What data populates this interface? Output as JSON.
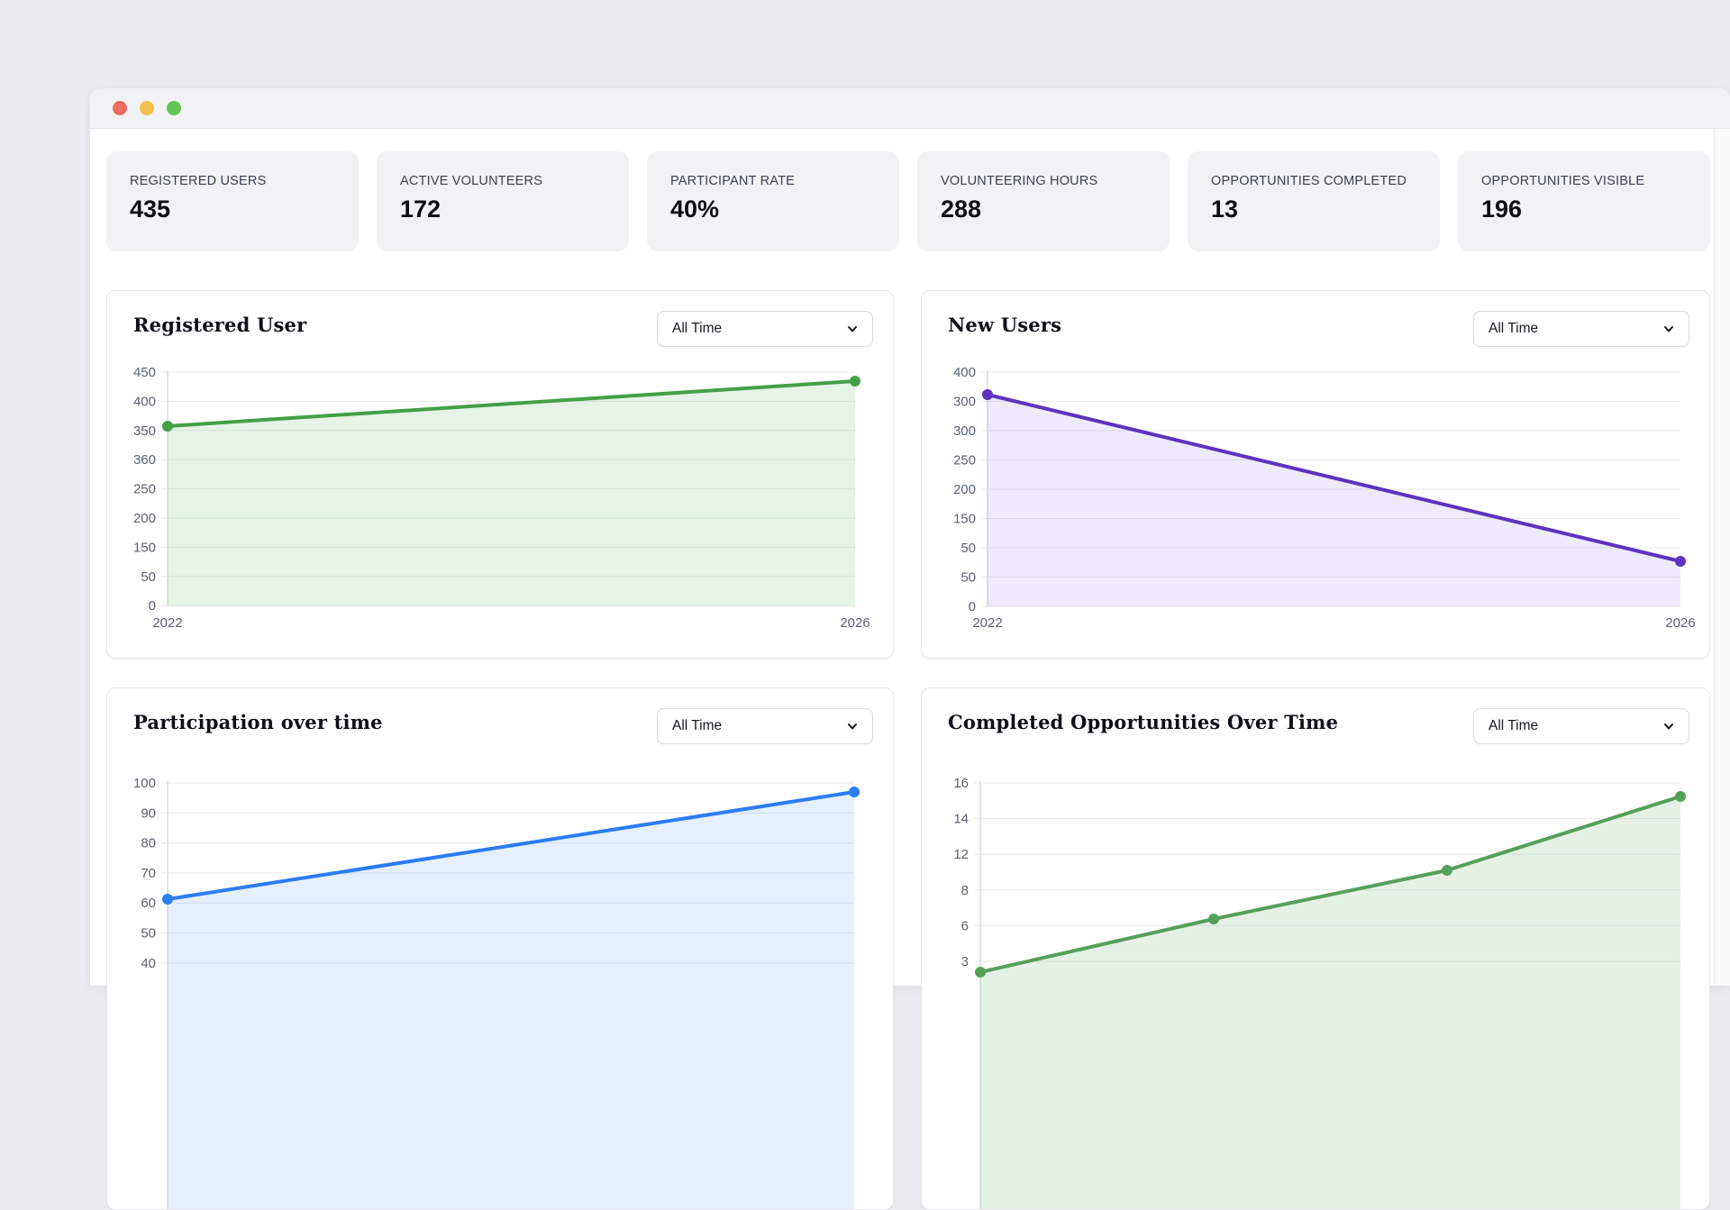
{
  "window": {
    "traffic_lights": [
      {
        "name": "close",
        "color": "#ed6a5e"
      },
      {
        "name": "minimize",
        "color": "#f5bf4f"
      },
      {
        "name": "zoom",
        "color": "#61c454"
      }
    ]
  },
  "stats": [
    {
      "label": "REGISTERED USERS",
      "value": "435"
    },
    {
      "label": "ACTIVE VOLUNTEERS",
      "value": "172"
    },
    {
      "label": "PARTICIPANT RATE",
      "value": "40%"
    },
    {
      "label": "VOLUNTEERING HOURS",
      "value": "288"
    },
    {
      "label": "OPPORTUNITIES COMPLETED",
      "value": "13"
    },
    {
      "label": "OPPORTUNITIES VISIBLE",
      "value": "196"
    }
  ],
  "chart_data": [
    {
      "type": "area",
      "title": "Registered User",
      "filter_label": "All Time",
      "x_tick_labels": [
        "2022",
        "2026"
      ],
      "y_tick_labels": [
        "450",
        "400",
        "350",
        "360",
        "250",
        "200",
        "150",
        "50",
        "0"
      ],
      "values": [
        360,
        435
      ],
      "line_color": "#43a047",
      "fill_color": "rgba(67,160,71,0.13)"
    },
    {
      "type": "area",
      "title": "New Users",
      "filter_label": "All Time",
      "x_tick_labels": [
        "2022",
        "2026"
      ],
      "y_tick_labels": [
        "400",
        "300",
        "300",
        "250",
        "200",
        "150",
        "50",
        "50",
        "0"
      ],
      "values": [
        325,
        80
      ],
      "line_color": "#5d33c0",
      "fill_color": "rgba(93,51,192,0.10)"
    },
    {
      "type": "area",
      "title": "Participation over time",
      "filter_label": "All Time",
      "y_tick_labels": [
        "100",
        "90",
        "80",
        "70",
        "60",
        "50",
        "40"
      ],
      "values": [
        61,
        97
      ],
      "line_color": "#2b7cf5",
      "fill_color": "rgba(43,124,245,0.12)"
    },
    {
      "type": "area",
      "title": "Completed Opportunities Over Time",
      "filter_label": "All Time",
      "y_tick_labels": [
        "16",
        "14",
        "12",
        "8",
        "6",
        "3"
      ],
      "values": [
        2.5,
        6.5,
        10.5,
        15.3
      ],
      "line_color": "#55a05a",
      "fill_color": "rgba(85,160,90,0.15)"
    }
  ]
}
